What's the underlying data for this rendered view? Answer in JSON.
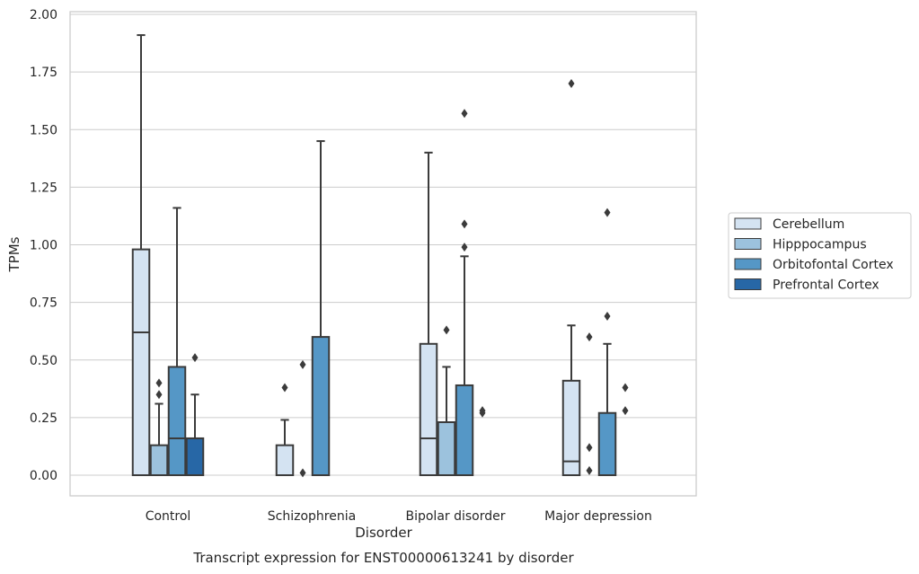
{
  "chart_data": {
    "type": "box",
    "xlabel": "Disorder",
    "ylabel": "TPMs",
    "caption": "Transcript expression for ENST00000613241 by disorder",
    "ylim": [
      -0.09,
      2.0
    ],
    "yticks": [
      "0.00",
      "0.25",
      "0.50",
      "0.75",
      "1.00",
      "1.25",
      "1.50",
      "1.75",
      "2.00"
    ],
    "grid": true,
    "legend_placement": "center-right outside",
    "categories": [
      "Control",
      "Schizophrenia",
      "Bipolar disorder",
      "Major depression"
    ],
    "series": [
      {
        "name": "Cerebellum",
        "color": "#d4e3f2",
        "boxes": [
          {
            "q1": 0.0,
            "median": 0.62,
            "q3": 0.98,
            "whisker_low": 0.0,
            "whisker_high": 1.91,
            "outliers": []
          },
          {
            "q1": 0.0,
            "median": 0.0,
            "q3": 0.13,
            "whisker_low": 0.0,
            "whisker_high": 0.24,
            "outliers": [
              0.38
            ]
          },
          {
            "q1": 0.0,
            "median": 0.16,
            "q3": 0.57,
            "whisker_low": 0.0,
            "whisker_high": 1.4,
            "outliers": []
          },
          {
            "q1": 0.0,
            "median": 0.06,
            "q3": 0.41,
            "whisker_low": 0.0,
            "whisker_high": 0.65,
            "outliers": [
              1.7
            ]
          }
        ]
      },
      {
        "name": "Hipppocampus",
        "color": "#9cc2dd",
        "boxes": [
          {
            "q1": 0.0,
            "median": 0.0,
            "q3": 0.13,
            "whisker_low": 0.0,
            "whisker_high": 0.31,
            "outliers": [
              0.35,
              0.4
            ]
          },
          {
            "q1": 0.0,
            "median": 0.0,
            "q3": 0.0,
            "whisker_low": 0.0,
            "whisker_high": 0.0,
            "outliers": [
              0.01,
              0.48
            ]
          },
          {
            "q1": 0.0,
            "median": 0.0,
            "q3": 0.23,
            "whisker_low": 0.0,
            "whisker_high": 0.47,
            "outliers": [
              0.63
            ]
          },
          {
            "q1": 0.0,
            "median": 0.0,
            "q3": 0.0,
            "whisker_low": 0.0,
            "whisker_high": 0.0,
            "outliers": [
              0.02,
              0.12,
              0.6
            ]
          }
        ]
      },
      {
        "name": "Orbitofontal Cortex",
        "color": "#5597c6",
        "boxes": [
          {
            "q1": 0.0,
            "median": 0.16,
            "q3": 0.47,
            "whisker_low": 0.0,
            "whisker_high": 1.16,
            "outliers": []
          },
          {
            "q1": 0.0,
            "median": 0.0,
            "q3": 0.6,
            "whisker_low": 0.0,
            "whisker_high": 1.45,
            "outliers": []
          },
          {
            "q1": 0.0,
            "median": 0.0,
            "q3": 0.39,
            "whisker_low": 0.0,
            "whisker_high": 0.95,
            "outliers": [
              0.99,
              1.09,
              1.57
            ]
          },
          {
            "q1": 0.0,
            "median": 0.0,
            "q3": 0.27,
            "whisker_low": 0.0,
            "whisker_high": 0.57,
            "outliers": [
              0.69,
              1.14
            ]
          }
        ]
      },
      {
        "name": "Prefrontal Cortex",
        "color": "#2767a6",
        "boxes": [
          {
            "q1": 0.0,
            "median": 0.16,
            "q3": 0.16,
            "whisker_low": 0.0,
            "whisker_high": 0.35,
            "outliers": [
              0.51
            ]
          },
          {
            "q1": 0.0,
            "median": 0.0,
            "q3": 0.0,
            "whisker_low": 0.0,
            "whisker_high": 0.0,
            "outliers": []
          },
          {
            "q1": 0.0,
            "median": 0.0,
            "q3": 0.0,
            "whisker_low": 0.0,
            "whisker_high": 0.0,
            "outliers": [
              0.27,
              0.28
            ]
          },
          {
            "q1": 0.0,
            "median": 0.0,
            "q3": 0.0,
            "whisker_low": 0.0,
            "whisker_high": 0.0,
            "outliers": [
              0.28,
              0.38
            ]
          }
        ]
      }
    ]
  }
}
